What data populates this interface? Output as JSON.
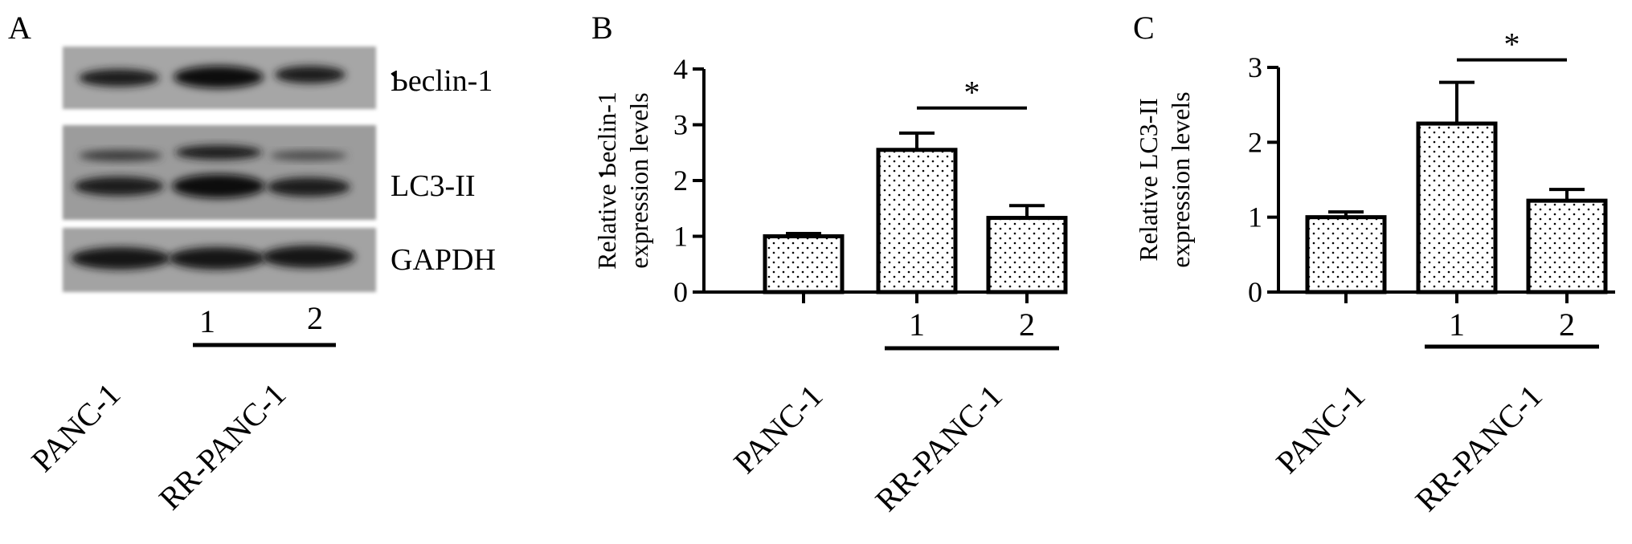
{
  "panels": {
    "a": {
      "letter": "A",
      "bands": [
        "Ƅeclin-1",
        "LC3-II",
        "GAPDH"
      ],
      "lane_numbers": [
        "1",
        "2"
      ],
      "groups": [
        "PANC-1",
        "RR-PANC-1"
      ]
    },
    "b": {
      "letter": "B"
    },
    "c": {
      "letter": "C"
    }
  },
  "chart_data": [
    {
      "type": "bar",
      "panel": "B",
      "categories": [
        "PANC-1",
        "RR-PANC-1 1",
        "RR-PANC-1 2"
      ],
      "category_numbers": [
        "",
        "1",
        "2"
      ],
      "group_labels": [
        "PANC-1",
        "RR-PANC-1"
      ],
      "values": [
        1.0,
        2.55,
        1.33
      ],
      "errors": [
        0.05,
        0.3,
        0.22
      ],
      "ylabel": [
        "Relative Ƅeclin-1",
        "expression levels"
      ],
      "ylim": [
        0,
        4
      ],
      "yticks": [
        "0",
        "1",
        "2",
        "3",
        "4"
      ],
      "significance": {
        "pair": [
          1,
          2
        ],
        "label": "*"
      },
      "fill": "dotted",
      "bar_color": "#000000"
    },
    {
      "type": "bar",
      "panel": "C",
      "categories": [
        "PANC-1",
        "RR-PANC-1 1",
        "RR-PANC-1 2"
      ],
      "category_numbers": [
        "",
        "1",
        "2"
      ],
      "group_labels": [
        "PANC-1",
        "RR-PANC-1"
      ],
      "values": [
        1.0,
        2.25,
        1.22
      ],
      "errors": [
        0.07,
        0.55,
        0.15
      ],
      "ylabel": [
        "Relative LC3-II",
        "expression levels"
      ],
      "ylim": [
        0,
        3
      ],
      "yticks": [
        "0",
        "1",
        "2",
        "3"
      ],
      "significance": {
        "pair": [
          1,
          2
        ],
        "label": "*"
      },
      "fill": "dotted",
      "bar_color": "#000000"
    }
  ]
}
